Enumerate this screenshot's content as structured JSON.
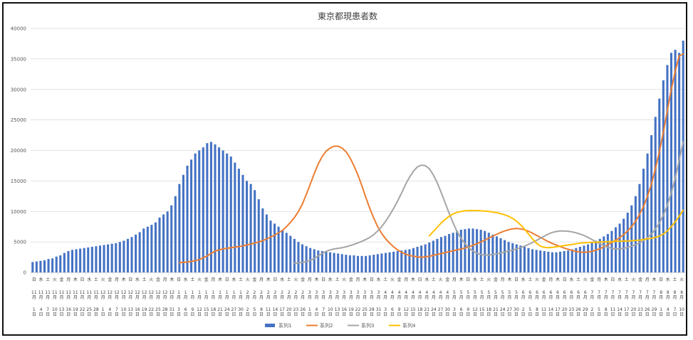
{
  "chart_data": {
    "type": "bar",
    "title": "東京都現患者数",
    "xlabel": "",
    "ylabel": "",
    "ylim": [
      0,
      40000
    ],
    "y_ticks": [
      0,
      5000,
      10000,
      15000,
      20000,
      25000,
      30000,
      35000,
      40000
    ],
    "grid": true,
    "legend_position": "bottom",
    "weekday_sequence": [
      "日",
      "水",
      "土",
      "火",
      "金",
      "月",
      "木"
    ],
    "month_row_label": "月",
    "day_suffix": "日",
    "x_ticks": [
      {
        "m": 11,
        "d": 1
      },
      {
        "m": 11,
        "d": 4
      },
      {
        "m": 11,
        "d": 7
      },
      {
        "m": 11,
        "d": 10
      },
      {
        "m": 11,
        "d": 13
      },
      {
        "m": 11,
        "d": 16
      },
      {
        "m": 11,
        "d": 19
      },
      {
        "m": 11,
        "d": 22
      },
      {
        "m": 11,
        "d": 25
      },
      {
        "m": 11,
        "d": 28
      },
      {
        "m": 12,
        "d": 1
      },
      {
        "m": 12,
        "d": 4
      },
      {
        "m": 12,
        "d": 7
      },
      {
        "m": 12,
        "d": 10
      },
      {
        "m": 12,
        "d": 13
      },
      {
        "m": 12,
        "d": 16
      },
      {
        "m": 12,
        "d": 19
      },
      {
        "m": 12,
        "d": 22
      },
      {
        "m": 12,
        "d": 25
      },
      {
        "m": 12,
        "d": 28
      },
      {
        "m": 12,
        "d": 31
      },
      {
        "m": 1,
        "d": 3
      },
      {
        "m": 1,
        "d": 6
      },
      {
        "m": 1,
        "d": 9
      },
      {
        "m": 1,
        "d": 12
      },
      {
        "m": 1,
        "d": 15
      },
      {
        "m": 1,
        "d": 18
      },
      {
        "m": 1,
        "d": 21
      },
      {
        "m": 1,
        "d": 24
      },
      {
        "m": 1,
        "d": 27
      },
      {
        "m": 1,
        "d": 30
      },
      {
        "m": 2,
        "d": 2
      },
      {
        "m": 2,
        "d": 5
      },
      {
        "m": 2,
        "d": 8
      },
      {
        "m": 2,
        "d": 11
      },
      {
        "m": 2,
        "d": 14
      },
      {
        "m": 2,
        "d": 17
      },
      {
        "m": 2,
        "d": 20
      },
      {
        "m": 2,
        "d": 23
      },
      {
        "m": 2,
        "d": 26
      },
      {
        "m": 3,
        "d": 1
      },
      {
        "m": 3,
        "d": 4
      },
      {
        "m": 3,
        "d": 7
      },
      {
        "m": 3,
        "d": 10
      },
      {
        "m": 3,
        "d": 13
      },
      {
        "m": 3,
        "d": 16
      },
      {
        "m": 3,
        "d": 19
      },
      {
        "m": 3,
        "d": 22
      },
      {
        "m": 3,
        "d": 25
      },
      {
        "m": 3,
        "d": 28
      },
      {
        "m": 3,
        "d": 31
      },
      {
        "m": 4,
        "d": 3
      },
      {
        "m": 4,
        "d": 6
      },
      {
        "m": 4,
        "d": 9
      },
      {
        "m": 4,
        "d": 12
      },
      {
        "m": 4,
        "d": 15
      },
      {
        "m": 4,
        "d": 18
      },
      {
        "m": 4,
        "d": 21
      },
      {
        "m": 4,
        "d": 24
      },
      {
        "m": 4,
        "d": 27
      },
      {
        "m": 4,
        "d": 30
      },
      {
        "m": 5,
        "d": 3
      },
      {
        "m": 5,
        "d": 6
      },
      {
        "m": 5,
        "d": 9
      },
      {
        "m": 5,
        "d": 12
      },
      {
        "m": 5,
        "d": 15
      },
      {
        "m": 5,
        "d": 18
      },
      {
        "m": 5,
        "d": 21
      },
      {
        "m": 5,
        "d": 24
      },
      {
        "m": 5,
        "d": 27
      },
      {
        "m": 5,
        "d": 30
      },
      {
        "m": 6,
        "d": 2
      },
      {
        "m": 6,
        "d": 5
      },
      {
        "m": 6,
        "d": 8
      },
      {
        "m": 6,
        "d": 11
      },
      {
        "m": 6,
        "d": 14
      },
      {
        "m": 6,
        "d": 17
      },
      {
        "m": 6,
        "d": 20
      },
      {
        "m": 6,
        "d": 23
      },
      {
        "m": 6,
        "d": 26
      },
      {
        "m": 6,
        "d": 29
      },
      {
        "m": 7,
        "d": 2
      },
      {
        "m": 7,
        "d": 5
      },
      {
        "m": 7,
        "d": 8
      },
      {
        "m": 7,
        "d": 11
      },
      {
        "m": 7,
        "d": 14
      },
      {
        "m": 7,
        "d": 17
      },
      {
        "m": 7,
        "d": 20
      },
      {
        "m": 7,
        "d": 23
      },
      {
        "m": 7,
        "d": 26
      },
      {
        "m": 7,
        "d": 29
      },
      {
        "m": 8,
        "d": 1
      },
      {
        "m": 8,
        "d": 4
      },
      {
        "m": 8,
        "d": 7
      },
      {
        "m": 8,
        "d": 10
      }
    ],
    "series": [
      {
        "name": "系列1",
        "type": "bar",
        "color": "#4472C4",
        "values": [
          1700,
          1800,
          1900,
          2000,
          2200,
          2300,
          2600,
          2800,
          3200,
          3500,
          3700,
          3800,
          3900,
          4000,
          4100,
          4200,
          4300,
          4400,
          4500,
          4600,
          4700,
          4800,
          5000,
          5200,
          5500,
          5800,
          6200,
          6600,
          7200,
          7500,
          7800,
          8200,
          9000,
          9500,
          10000,
          11000,
          12500,
          14500,
          16000,
          17500,
          18500,
          19500,
          20000,
          20500,
          21200,
          21400,
          21000,
          20500,
          20000,
          19500,
          19000,
          18000,
          17000,
          16000,
          15000,
          14500,
          13500,
          12000,
          10500,
          9500,
          8500,
          8000,
          7500,
          7000,
          6500,
          6000,
          5500,
          5000,
          4600,
          4300,
          4000,
          3800,
          3600,
          3500,
          3400,
          3300,
          3200,
          3100,
          3000,
          2900,
          2800,
          2800,
          2700,
          2700,
          2700,
          2800,
          2900,
          3000,
          3100,
          3200,
          3300,
          3400,
          3500,
          3600,
          3700,
          3800,
          4000,
          4200,
          4400,
          4600,
          4900,
          5200,
          5500,
          5800,
          6000,
          6300,
          6500,
          6800,
          7000,
          7100,
          7200,
          7200,
          7100,
          7000,
          6800,
          6500,
          6200,
          5900,
          5600,
          5300,
          5000,
          4800,
          4600,
          4400,
          4200,
          4000,
          3800,
          3700,
          3600,
          3500,
          3400,
          3300,
          3300,
          3400,
          3500,
          3600,
          3800,
          4000,
          4200,
          4400,
          4600,
          4900,
          5200,
          5500,
          5900,
          6300,
          6800,
          7400,
          8000,
          8800,
          9800,
          11000,
          12500,
          14500,
          17000,
          19500,
          22500,
          25500,
          28500,
          31500,
          34000,
          36000,
          36500,
          36000,
          38000
        ]
      },
      {
        "name": "系列2",
        "type": "line",
        "color": "#ED7D31",
        "values": [
          1600,
          1650,
          1700,
          1800,
          1950,
          2100,
          2400,
          2700,
          3100,
          3500,
          3700,
          3850,
          3950,
          4050,
          4150,
          4250,
          4350,
          4500,
          4650,
          4800,
          5000,
          5200,
          5500,
          5800,
          6100,
          6500,
          6900,
          7500,
          8200,
          9000,
          10000,
          11200,
          12800,
          14500,
          16200,
          17800,
          19000,
          19900,
          20400,
          20700,
          20700,
          20400,
          19800,
          18800,
          17500,
          16000,
          14200,
          12300,
          10500,
          8900,
          7500,
          6400,
          5500,
          4800,
          4200,
          3700,
          3300,
          3000,
          2800,
          2650,
          2550,
          2500,
          2550,
          2650,
          2800,
          2950,
          3100,
          3250,
          3400,
          3550,
          3700,
          3850,
          4000,
          4200,
          4450,
          4700,
          5000,
          5300,
          5650,
          5950,
          6250,
          6550,
          6800,
          7000,
          7150,
          7200,
          7150,
          7000,
          6750,
          6450,
          6100,
          5750,
          5400,
          5050,
          4750,
          4500,
          4250,
          4000,
          3800,
          3600,
          3450,
          3350,
          3300,
          3350,
          3450,
          3650,
          3900,
          4200,
          4550,
          4900,
          5300,
          5700,
          6200,
          6800,
          7500,
          8400,
          9500,
          10800,
          12500,
          14500,
          17000,
          19800,
          23000,
          26500,
          30000,
          33000,
          35500,
          35800
        ]
      },
      {
        "name": "系列3",
        "type": "line",
        "color": "#A5A5A5",
        "values": [
          1500,
          1550,
          1650,
          1800,
          2000,
          2300,
          2700,
          3100,
          3450,
          3700,
          3850,
          3950,
          4050,
          4200,
          4400,
          4600,
          4850,
          5100,
          5400,
          5750,
          6200,
          6800,
          7500,
          8400,
          9400,
          10500,
          11700,
          13000,
          14400,
          15600,
          16600,
          17300,
          17600,
          17500,
          17000,
          16000,
          14700,
          13100,
          11400,
          9700,
          8100,
          6700,
          5600,
          4700,
          4000,
          3500,
          3150,
          2950,
          2850,
          2850,
          2950,
          3050,
          3200,
          3350,
          3500,
          3650,
          3850,
          4050,
          4300,
          4600,
          4900,
          5250,
          5600,
          5950,
          6300,
          6550,
          6700,
          6800,
          6800,
          6750,
          6650,
          6500,
          6300,
          6050,
          5750,
          5400,
          5050,
          4700,
          4400,
          4150,
          3950,
          3850,
          3850,
          3950,
          4100,
          4300,
          4550,
          4850,
          5200,
          5700,
          6300,
          7100,
          8100,
          9400,
          11000,
          13000,
          15500,
          18400,
          21400
        ]
      },
      {
        "name": "系列4",
        "type": "line",
        "color": "#FFC000",
        "values": [
          6000,
          6700,
          7400,
          8100,
          8700,
          9200,
          9600,
          9850,
          10000,
          10100,
          10150,
          10150,
          10150,
          10100,
          10050,
          10000,
          9900,
          9800,
          9650,
          9450,
          9200,
          8850,
          8400,
          7800,
          7100,
          6300,
          5500,
          4800,
          4300,
          4100,
          4050,
          4100,
          4200,
          4300,
          4400,
          4500,
          4600,
          4700,
          4800,
          4850,
          4900,
          4950,
          4950,
          5000,
          5000,
          5050,
          5050,
          5100,
          5100,
          5150,
          5150,
          5200,
          5250,
          5300,
          5400,
          5500,
          5600,
          5750,
          5950,
          6300,
          6800,
          7500,
          8300,
          9200,
          10200
        ]
      }
    ]
  }
}
